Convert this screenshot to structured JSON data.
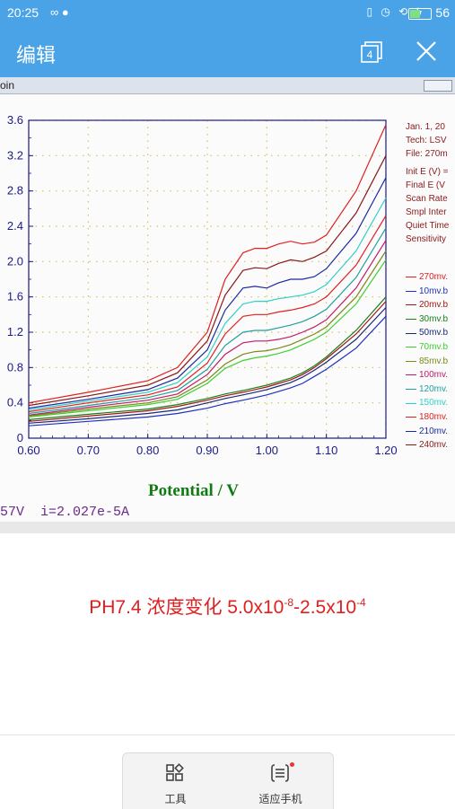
{
  "status_bar": {
    "time": "20:25",
    "left_icons": [
      "infinity-icon",
      "message-icon"
    ],
    "right_icons": [
      "vibrate-icon",
      "alarm-icon",
      "data-icon",
      "charging-icon"
    ],
    "battery": "56",
    "battery_level": 0.56,
    "battery_color": "#7ee07e"
  },
  "app_bar": {
    "title": "编辑",
    "tabs_count": "4",
    "color": "#4aa3e6"
  },
  "photo": {
    "window_title": "oin",
    "readout": "57V  i=2.027e-5A",
    "side_info": {
      "header": [
        "Jan. 1, 20",
        "Tech: LSV",
        "File: 270m"
      ],
      "params": [
        "Init E (V) =",
        "Final E (V",
        "Scan Rate",
        "Smpl Inter",
        "Quiet Time",
        "Sensitivity"
      ]
    },
    "legend": [
      {
        "label": "270mv.",
        "color": "#e02020"
      },
      {
        "label": "10mv.b",
        "color": "#2030c0"
      },
      {
        "label": "20mv.b",
        "color": "#a01818"
      },
      {
        "label": "30mv.b",
        "color": "#18801a"
      },
      {
        "label": "50mv.b",
        "color": "#1a2a7a"
      },
      {
        "label": "70mv.b",
        "color": "#3ecf2e"
      },
      {
        "label": "85mv.b",
        "color": "#7a8a18"
      },
      {
        "label": "100mv.",
        "color": "#c01a6a"
      },
      {
        "label": "120mv.",
        "color": "#20a0a0"
      },
      {
        "label": "150mv.",
        "color": "#30d0c8"
      },
      {
        "label": "180mv.",
        "color": "#e02020"
      },
      {
        "label": "210mv.",
        "color": "#1a2aa0"
      },
      {
        "label": "240mv.",
        "color": "#8a1818"
      }
    ]
  },
  "chart_data": {
    "type": "line",
    "xlabel": "Potential / V",
    "ylabel": "",
    "xlim": [
      0.6,
      1.2
    ],
    "ylim": [
      0,
      3.6
    ],
    "x_ticks": [
      "0.60",
      "0.70",
      "0.80",
      "0.90",
      "1.00",
      "1.10",
      "1.20"
    ],
    "y_ticks": [
      "0",
      "0.4",
      "0.8",
      "1.2",
      "1.6",
      "2.0",
      "2.4",
      "2.8",
      "3.2",
      "3.6"
    ],
    "grid": "dotted",
    "x": [
      0.6,
      0.7,
      0.8,
      0.85,
      0.9,
      0.93,
      0.96,
      0.98,
      1.0,
      1.02,
      1.04,
      1.06,
      1.08,
      1.1,
      1.15,
      1.2
    ],
    "series": [
      {
        "color": "#e02020",
        "values": [
          0.4,
          0.52,
          0.65,
          0.8,
          1.2,
          1.8,
          2.1,
          2.15,
          2.15,
          2.2,
          2.23,
          2.2,
          2.22,
          2.3,
          2.8,
          3.55
        ]
      },
      {
        "color": "#8a1818",
        "values": [
          0.37,
          0.48,
          0.6,
          0.74,
          1.1,
          1.62,
          1.9,
          1.93,
          1.92,
          1.98,
          2.02,
          2.0,
          2.05,
          2.12,
          2.55,
          3.2
        ]
      },
      {
        "color": "#1a2aa0",
        "values": [
          0.34,
          0.44,
          0.55,
          0.68,
          1.0,
          1.45,
          1.7,
          1.72,
          1.7,
          1.76,
          1.8,
          1.8,
          1.83,
          1.92,
          2.32,
          2.95
        ]
      },
      {
        "color": "#30d0c8",
        "values": [
          0.32,
          0.42,
          0.52,
          0.63,
          0.92,
          1.3,
          1.52,
          1.55,
          1.55,
          1.58,
          1.6,
          1.62,
          1.66,
          1.74,
          2.12,
          2.72
        ]
      },
      {
        "color": "#e02020",
        "values": [
          0.3,
          0.4,
          0.49,
          0.58,
          0.85,
          1.18,
          1.38,
          1.4,
          1.4,
          1.43,
          1.45,
          1.48,
          1.52,
          1.6,
          1.96,
          2.52
        ]
      },
      {
        "color": "#20a0a0",
        "values": [
          0.28,
          0.37,
          0.46,
          0.54,
          0.78,
          1.05,
          1.2,
          1.22,
          1.22,
          1.25,
          1.28,
          1.32,
          1.38,
          1.46,
          1.82,
          2.38
        ]
      },
      {
        "color": "#c01a6a",
        "values": [
          0.26,
          0.35,
          0.43,
          0.5,
          0.72,
          0.95,
          1.08,
          1.1,
          1.1,
          1.12,
          1.15,
          1.2,
          1.26,
          1.34,
          1.7,
          2.24
        ]
      },
      {
        "color": "#7a8a18",
        "values": [
          0.25,
          0.33,
          0.4,
          0.47,
          0.66,
          0.84,
          0.95,
          0.98,
          0.99,
          1.02,
          1.06,
          1.12,
          1.18,
          1.26,
          1.6,
          2.12
        ]
      },
      {
        "color": "#3ecf2e",
        "values": [
          0.24,
          0.31,
          0.38,
          0.44,
          0.62,
          0.79,
          0.88,
          0.91,
          0.93,
          0.96,
          1.0,
          1.06,
          1.12,
          1.2,
          1.52,
          2.02
        ]
      },
      {
        "color": "#18801a",
        "values": [
          0.21,
          0.27,
          0.33,
          0.38,
          0.45,
          0.5,
          0.54,
          0.57,
          0.6,
          0.64,
          0.68,
          0.74,
          0.82,
          0.92,
          1.22,
          1.6
        ]
      },
      {
        "color": "#a01818",
        "values": [
          0.19,
          0.25,
          0.31,
          0.36,
          0.43,
          0.48,
          0.52,
          0.55,
          0.58,
          0.62,
          0.66,
          0.72,
          0.8,
          0.9,
          1.18,
          1.55
        ]
      },
      {
        "color": "#1a2a7a",
        "values": [
          0.17,
          0.22,
          0.28,
          0.32,
          0.4,
          0.45,
          0.49,
          0.52,
          0.55,
          0.59,
          0.63,
          0.69,
          0.77,
          0.86,
          1.12,
          1.48
        ]
      },
      {
        "color": "#2030c0",
        "values": [
          0.14,
          0.19,
          0.24,
          0.28,
          0.34,
          0.39,
          0.43,
          0.46,
          0.49,
          0.53,
          0.57,
          0.62,
          0.7,
          0.78,
          1.02,
          1.38
        ]
      }
    ]
  },
  "caption": {
    "prefix": "PH7.4 浓度变化 5.0x10",
    "exp1": "-8",
    "middle": "-2.5x10",
    "exp2": "-4"
  },
  "toolbar": {
    "tools_label": "工具",
    "fit_label": "适应手机"
  }
}
